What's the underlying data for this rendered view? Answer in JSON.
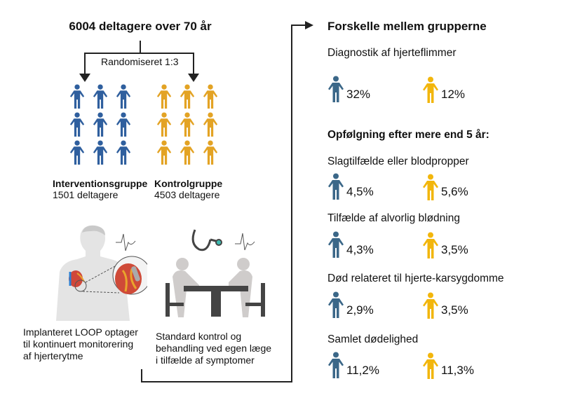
{
  "title": "6004 deltagere over 70 år",
  "randomization": "Randomiseret 1:3",
  "groups": {
    "intervention": {
      "name": "Interventionsgruppe",
      "count": "1501 deltagere",
      "color": "#2f5f9e"
    },
    "control": {
      "name": "Kontrolgruppe",
      "count": "4503 deltagere",
      "color": "#e3a324"
    }
  },
  "illustrations": {
    "loop": {
      "caption_lines": [
        "Implanteret LOOP optager",
        "til kontinuert monitorering",
        "af hjerterytme"
      ]
    },
    "standard": {
      "caption_lines": [
        "Standard kontrol og",
        "behandling ved egen læge",
        "i tilfælde af symptomer"
      ]
    }
  },
  "results": {
    "heading": "Forskelle mellem grupperne",
    "followup_heading": "Opfølgning efter mere end 5 år:",
    "icon_colors": {
      "intervention": "#3b6788",
      "control": "#f2b60c"
    },
    "items": [
      {
        "label": "Diagnostik af hjerteflimmer",
        "intervention": "32%",
        "control": "12%"
      },
      {
        "label": "Slagtilfælde eller blodpropper",
        "intervention": "4,5%",
        "control": "5,6%"
      },
      {
        "label": "Tilfælde af alvorlig blødning",
        "intervention": "4,3%",
        "control": "3,5%"
      },
      {
        "label": "Død relateret til hjerte-karsygdomme",
        "intervention": "2,9%",
        "control": "3,5%"
      },
      {
        "label": "Samlet dødelighed",
        "intervention": "11,2%",
        "control": "11,3%"
      }
    ]
  }
}
